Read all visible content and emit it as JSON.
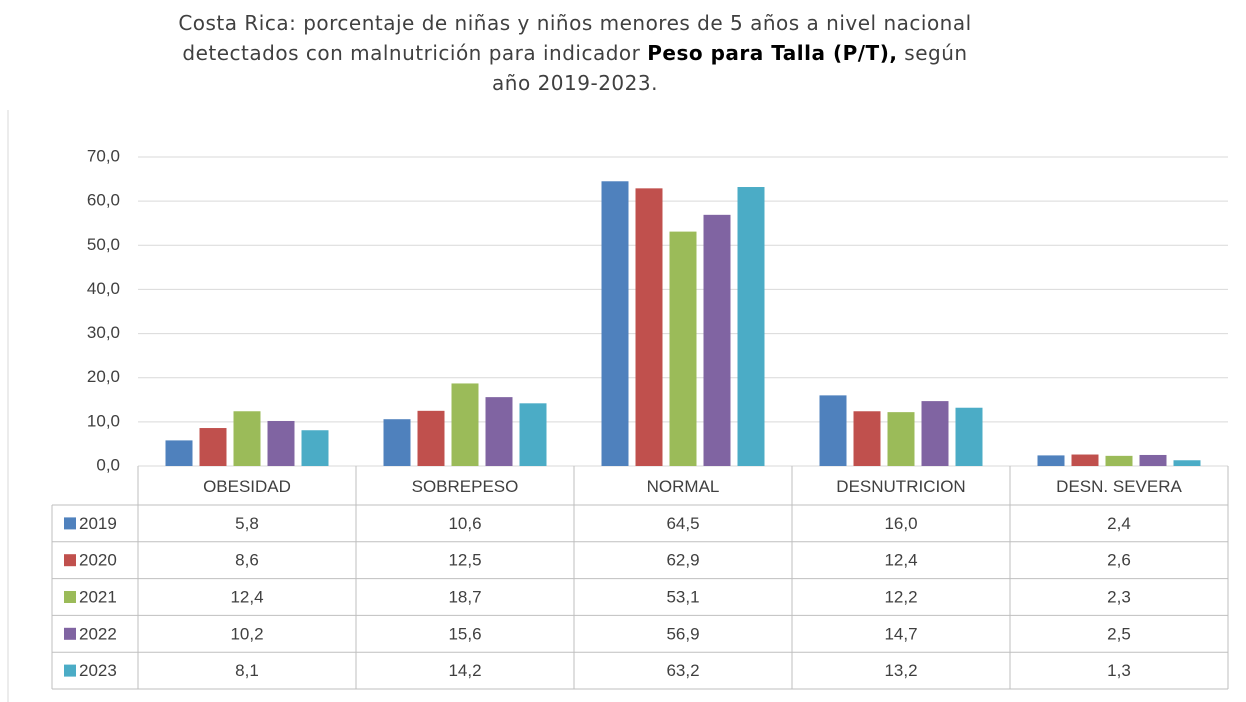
{
  "chart_data": {
    "type": "bar",
    "title_parts": [
      "Costa Rica:  porcentaje de niñas y niños menores de 5 años a nivel nacional detectados con malnutrición  para indicador  ",
      "Peso para Talla (P/T),",
      " según año 2019-2023."
    ],
    "categories": [
      "OBESIDAD",
      "SOBREPESO",
      "NORMAL",
      "DESNUTRICION",
      "DESN. SEVERA"
    ],
    "series": [
      {
        "name": "2019",
        "color": "#4f81bd",
        "values": [
          5.8,
          10.6,
          64.5,
          16.0,
          2.4
        ],
        "value_labels": [
          "5,8",
          "10,6",
          "64,5",
          "16,0",
          "2,4"
        ]
      },
      {
        "name": "2020",
        "color": "#c0504d",
        "values": [
          8.6,
          12.5,
          62.9,
          12.4,
          2.6
        ],
        "value_labels": [
          "8,6",
          "12,5",
          "62,9",
          "12,4",
          "2,6"
        ]
      },
      {
        "name": "2021",
        "color": "#9bbb59",
        "values": [
          12.4,
          18.7,
          53.1,
          12.2,
          2.3
        ],
        "value_labels": [
          "12,4",
          "18,7",
          "53,1",
          "12,2",
          "2,3"
        ]
      },
      {
        "name": "2022",
        "color": "#8064a2",
        "values": [
          10.2,
          15.6,
          56.9,
          14.7,
          2.5
        ],
        "value_labels": [
          "10,2",
          "15,6",
          "56,9",
          "14,7",
          "2,5"
        ]
      },
      {
        "name": "2023",
        "color": "#4bacc6",
        "values": [
          8.1,
          14.2,
          63.2,
          13.2,
          1.3
        ],
        "value_labels": [
          "8,1",
          "14,2",
          "63,2",
          "13,2",
          "1,3"
        ]
      }
    ],
    "ylim": [
      0,
      70
    ],
    "yticks": [
      {
        "value": 0,
        "label": "0,0"
      },
      {
        "value": 10,
        "label": "10,0"
      },
      {
        "value": 20,
        "label": "20,0"
      },
      {
        "value": 30,
        "label": "30,0"
      },
      {
        "value": 40,
        "label": "40,0"
      },
      {
        "value": 50,
        "label": "50,0"
      },
      {
        "value": 60,
        "label": "60,0"
      },
      {
        "value": 70,
        "label": "70,0"
      }
    ],
    "grid": true
  }
}
